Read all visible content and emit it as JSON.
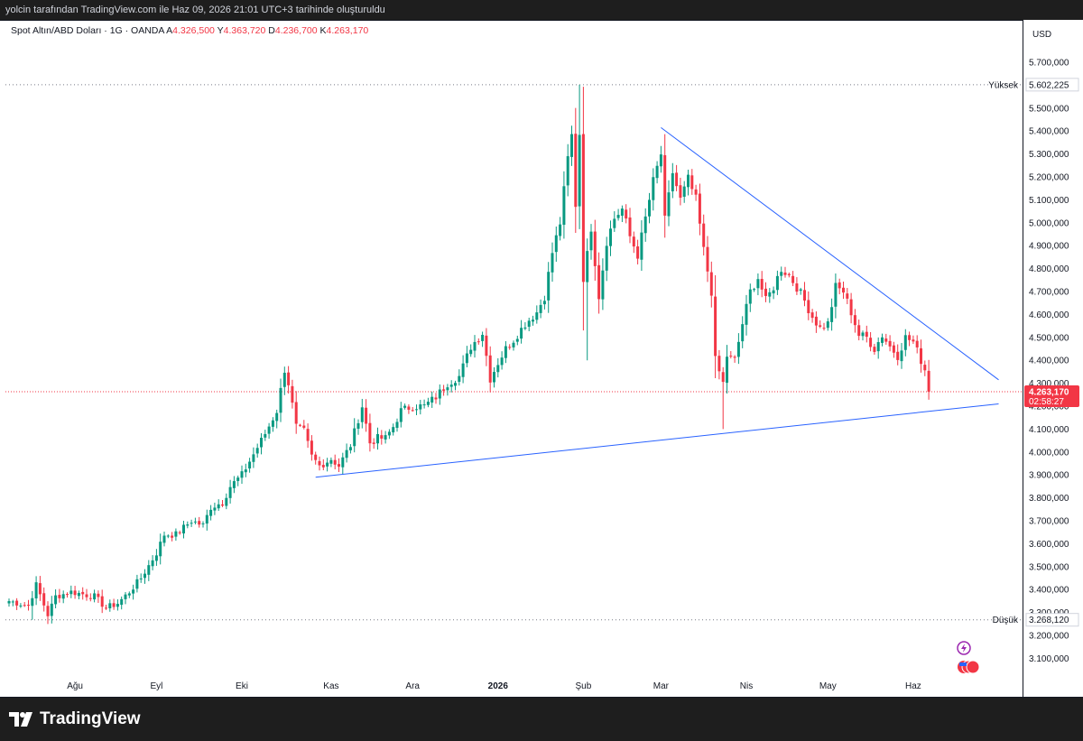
{
  "header": {
    "credit": "yolcin tarafından TradingView.com ile Haz 09, 2026 21:01 UTC+3 tarihinde oluşturuldu"
  },
  "legend": {
    "symbol": "Spot Altın/ABD Doları · 1G · OANDA",
    "open_label": "A",
    "open": "4.326,500",
    "high_label": "Y",
    "high": "4.363,720",
    "low_label": "D",
    "low": "4.236,700",
    "close_label": "K",
    "close": "4.263,170"
  },
  "footer": {
    "brand": "TradingView"
  },
  "colors": {
    "up": "#089981",
    "down": "#f23645",
    "trendline": "#2962ff",
    "price_tag": "#f23645"
  },
  "chart_data": {
    "type": "candlestick",
    "currency": "USD",
    "ylim": [
      3020,
      5900
    ],
    "y_ticks": [
      3100,
      3200,
      3300,
      3400,
      3500,
      3600,
      3700,
      3800,
      3900,
      4000,
      4100,
      4200,
      4300,
      4400,
      4500,
      4600,
      4700,
      4800,
      4900,
      5000,
      5100,
      5200,
      5300,
      5400,
      5500,
      5600,
      5700
    ],
    "y_tick_labels": [
      "3.100,000",
      "3.200,000",
      "3.300,000",
      "3.400,000",
      "3.500,000",
      "3.600,000",
      "3.700,000",
      "3.800,000",
      "3.900,000",
      "4.000,000",
      "4.100,000",
      "4.200,000",
      "4.300,000",
      "4.400,000",
      "4.500,000",
      "4.600,000",
      "4.700,000",
      "4.800,000",
      "4.900,000",
      "5.000,000",
      "5.100,000",
      "5.200,000",
      "5.300,000",
      "5.400,000",
      "5.500,000",
      "5.600,000",
      "5.700,000"
    ],
    "x_ticks": [
      {
        "label": "Ağu",
        "bar": 17,
        "bold": false
      },
      {
        "label": "Eyl",
        "bar": 38,
        "bold": false
      },
      {
        "label": "Eki",
        "bar": 60,
        "bold": false
      },
      {
        "label": "Kas",
        "bar": 83,
        "bold": false
      },
      {
        "label": "Ara",
        "bar": 104,
        "bold": false
      },
      {
        "label": "2026",
        "bar": 126,
        "bold": true
      },
      {
        "label": "Şub",
        "bar": 148,
        "bold": false
      },
      {
        "label": "Mar",
        "bar": 168,
        "bold": false
      },
      {
        "label": "Nis",
        "bar": 190,
        "bold": false
      },
      {
        "label": "May",
        "bar": 211,
        "bold": false
      },
      {
        "label": "Haz",
        "bar": 233,
        "bold": false
      }
    ],
    "high_marker": {
      "label": "Yüksek",
      "value_label": "5.602,225",
      "value": 5602.225
    },
    "low_marker": {
      "label": "Düşük",
      "value_label": "3.268,120",
      "value": 3268.12
    },
    "last_price": {
      "value": 4263.17,
      "label": "4.263,170",
      "countdown": "02:58:27"
    },
    "trendlines": [
      {
        "from": {
          "bar": 168,
          "y": 5415
        },
        "to": {
          "bar": 255,
          "y": 4315
        }
      },
      {
        "from": {
          "bar": 79,
          "y": 3890
        },
        "to": {
          "bar": 255,
          "y": 4210
        }
      }
    ],
    "keypoints": [
      [
        0,
        3350
      ],
      [
        5,
        3330
      ],
      [
        7,
        3420
      ],
      [
        10,
        3290
      ],
      [
        12,
        3370
      ],
      [
        16,
        3390
      ],
      [
        22,
        3370
      ],
      [
        25,
        3320
      ],
      [
        28,
        3340
      ],
      [
        31,
        3390
      ],
      [
        34,
        3450
      ],
      [
        38,
        3560
      ],
      [
        40,
        3640
      ],
      [
        43,
        3640
      ],
      [
        47,
        3700
      ],
      [
        50,
        3680
      ],
      [
        52,
        3760
      ],
      [
        55,
        3780
      ],
      [
        57,
        3850
      ],
      [
        60,
        3900
      ],
      [
        63,
        3990
      ],
      [
        66,
        4080
      ],
      [
        69,
        4180
      ],
      [
        71,
        4360
      ],
      [
        72,
        4300
      ],
      [
        74,
        4110
      ],
      [
        76,
        4090
      ],
      [
        78,
        3980
      ],
      [
        80,
        3940
      ],
      [
        83,
        3970
      ],
      [
        85,
        3940
      ],
      [
        88,
        4030
      ],
      [
        91,
        4200
      ],
      [
        93,
        4040
      ],
      [
        95,
        4060
      ],
      [
        97,
        4060
      ],
      [
        99,
        4110
      ],
      [
        101,
        4180
      ],
      [
        104,
        4200
      ],
      [
        107,
        4200
      ],
      [
        110,
        4240
      ],
      [
        113,
        4300
      ],
      [
        116,
        4330
      ],
      [
        119,
        4460
      ],
      [
        122,
        4520
      ],
      [
        124,
        4320
      ],
      [
        126,
        4390
      ],
      [
        128,
        4450
      ],
      [
        130,
        4490
      ],
      [
        133,
        4560
      ],
      [
        136,
        4610
      ],
      [
        138,
        4680
      ],
      [
        140,
        4870
      ],
      [
        142,
        5000
      ],
      [
        144,
        5280
      ],
      [
        145,
        5380
      ],
      [
        146,
        5080
      ],
      [
        147,
        5390
      ],
      [
        148,
        4760
      ],
      [
        149,
        4860
      ],
      [
        150,
        4980
      ],
      [
        152,
        4680
      ],
      [
        154,
        4920
      ],
      [
        156,
        5020
      ],
      [
        158,
        5060
      ],
      [
        160,
        4940
      ],
      [
        162,
        4860
      ],
      [
        164,
        5020
      ],
      [
        166,
        5180
      ],
      [
        168,
        5300
      ],
      [
        169,
        5010
      ],
      [
        171,
        5220
      ],
      [
        173,
        5100
      ],
      [
        175,
        5190
      ],
      [
        177,
        5100
      ],
      [
        179,
        4880
      ],
      [
        181,
        4700
      ],
      [
        182,
        4400
      ],
      [
        184,
        4300
      ],
      [
        185,
        4420
      ],
      [
        187,
        4400
      ],
      [
        189,
        4560
      ],
      [
        191,
        4700
      ],
      [
        193,
        4760
      ],
      [
        195,
        4660
      ],
      [
        197,
        4720
      ],
      [
        199,
        4800
      ],
      [
        201,
        4770
      ],
      [
        203,
        4720
      ],
      [
        205,
        4660
      ],
      [
        207,
        4590
      ],
      [
        209,
        4540
      ],
      [
        211,
        4560
      ],
      [
        213,
        4720
      ],
      [
        215,
        4700
      ],
      [
        217,
        4610
      ],
      [
        219,
        4510
      ],
      [
        221,
        4500
      ],
      [
        223,
        4450
      ],
      [
        225,
        4510
      ],
      [
        227,
        4460
      ],
      [
        229,
        4420
      ],
      [
        231,
        4500
      ],
      [
        233,
        4480
      ],
      [
        235,
        4400
      ],
      [
        236,
        4360
      ],
      [
        237,
        4263
      ]
    ],
    "spikes": [
      {
        "bar": 147,
        "high": 5602
      },
      {
        "bar": 149,
        "low": 4400
      },
      {
        "bar": 184,
        "low": 4100
      },
      {
        "bar": 6,
        "low": 3268
      }
    ]
  }
}
